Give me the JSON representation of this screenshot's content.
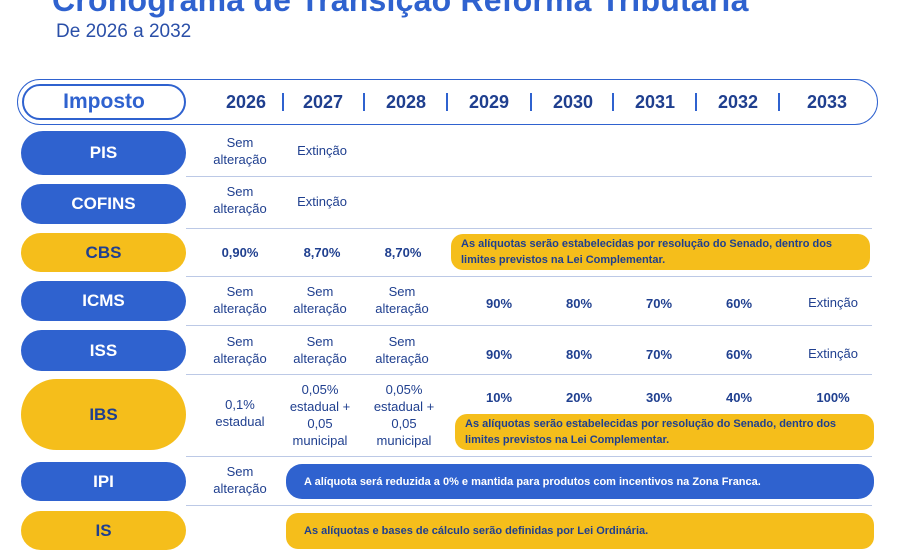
{
  "title": "Cronograma de Transição Reforma Tributária",
  "subtitle": "De 2026 a 2032",
  "header": {
    "label": "Imposto",
    "years": [
      "2026",
      "2027",
      "2028",
      "2029",
      "2030",
      "2031",
      "2032",
      "2033"
    ]
  },
  "rows": {
    "pis": {
      "name": "PIS",
      "c2026": "Sem alteração",
      "c2027": "Extinção"
    },
    "cofins": {
      "name": "COFINS",
      "c2026": "Sem alteração",
      "c2027": "Extinção"
    },
    "cbs": {
      "name": "CBS",
      "c2026": "0,90%",
      "c2027": "8,70%",
      "c2028": "8,70%",
      "note": "As alíquotas serão estabelecidas por resolução do Senado, dentro dos limites previstos na Lei Complementar."
    },
    "icms": {
      "name": "ICMS",
      "c2026": "Sem alteração",
      "c2027": "Sem alteração",
      "c2028": "Sem alteração",
      "c2029": "90%",
      "c2030": "80%",
      "c2031": "70%",
      "c2032": "60%",
      "c2033": "Extinção"
    },
    "iss": {
      "name": "ISS",
      "c2026": "Sem alteração",
      "c2027": "Sem alteração",
      "c2028": "Sem alteração",
      "c2029": "90%",
      "c2030": "80%",
      "c2031": "70%",
      "c2032": "60%",
      "c2033": "Extinção"
    },
    "ibs": {
      "name": "IBS",
      "c2026": "0,1% estadual",
      "c2027": "0,05% estadual + 0,05 municipal",
      "c2028": "0,05% estadual + 0,05 municipal",
      "c2029": "10%",
      "c2030": "20%",
      "c2031": "30%",
      "c2032": "40%",
      "c2033": "100%",
      "note": "As alíquotas serão estabelecidas por resolução do Senado, dentro dos limites previstos na Lei Complementar."
    },
    "ipi": {
      "name": "IPI",
      "c2026": "Sem alteração",
      "note": "A alíquota será reduzida a 0% e mantida para produtos com incentivos na Zona Franca."
    },
    "is": {
      "name": "IS",
      "note": "As alíquotas e bases de cálculo serão definidas por Lei Ordinária."
    }
  },
  "colors": {
    "blue": "#2f62cf",
    "yellow": "#f5be1b",
    "navy": "#1f3f8f"
  }
}
